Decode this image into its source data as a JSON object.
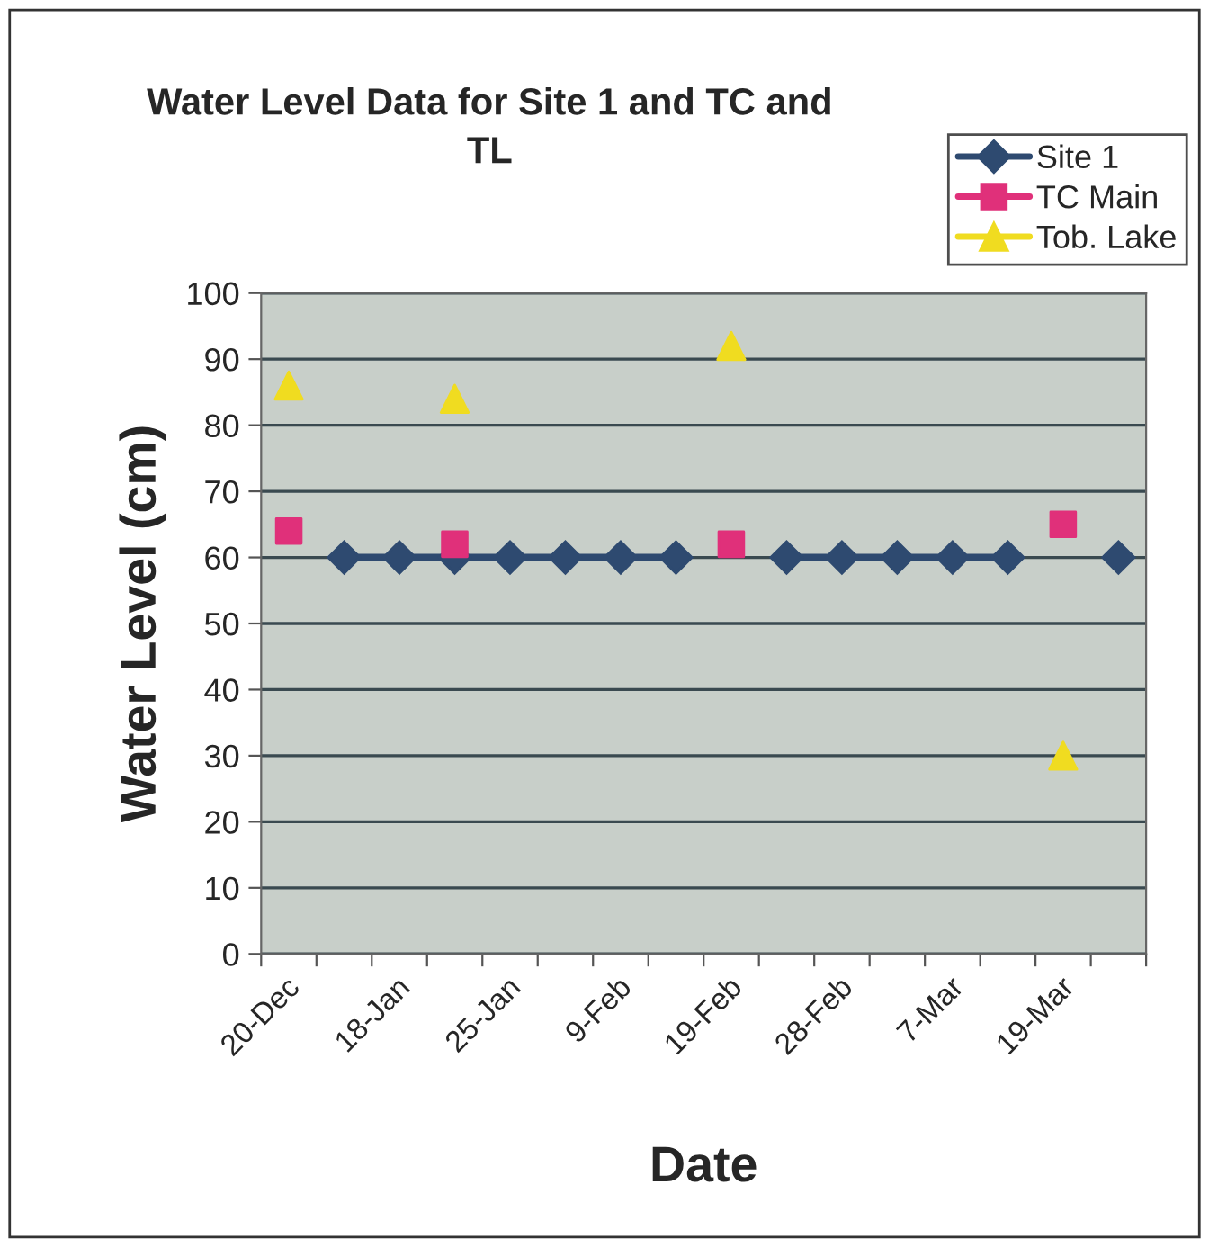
{
  "chart_data": {
    "type": "line",
    "title": "Water Level Data for Site 1 and TC and\nTL",
    "xlabel": "Date",
    "ylabel": "Water Level (cm)",
    "categories": [
      "20-Dec",
      null,
      "18-Jan",
      null,
      "25-Jan",
      null,
      "9-Feb",
      null,
      "19-Feb",
      null,
      "28-Feb",
      null,
      "7-Mar",
      null,
      "19-Mar",
      null
    ],
    "series": [
      {
        "name": "Site 1",
        "color": "#2e4a70",
        "marker": "diamond",
        "line_style": "solid",
        "values": [
          null,
          60,
          60,
          60,
          60,
          60,
          60,
          60,
          null,
          60,
          60,
          60,
          60,
          60,
          null,
          60
        ]
      },
      {
        "name": "TC Main",
        "type": "scatter",
        "color": "#e0307a",
        "marker": "square",
        "values": [
          64,
          null,
          null,
          62,
          null,
          null,
          null,
          null,
          62,
          null,
          null,
          null,
          null,
          null,
          65,
          null
        ]
      },
      {
        "name": "Tob. Lake",
        "type": "scatter",
        "color": "#f0dc20",
        "marker": "triangle",
        "values": [
          86,
          null,
          null,
          84,
          null,
          null,
          null,
          null,
          92,
          null,
          null,
          null,
          null,
          null,
          30,
          null
        ]
      }
    ],
    "ylim": [
      0,
      100
    ],
    "yticks": [
      0,
      10,
      20,
      30,
      40,
      50,
      60,
      70,
      80,
      90,
      100
    ],
    "grid": "y",
    "legend": "top right"
  }
}
